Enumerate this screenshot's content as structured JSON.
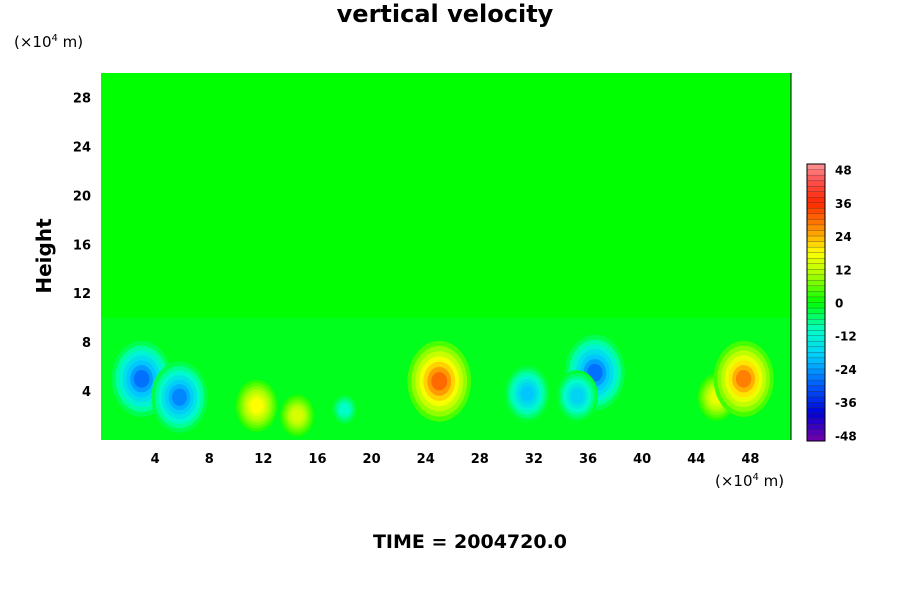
{
  "chart_data": {
    "type": "heatmap",
    "title": "vertical velocity",
    "ylabel": "Height",
    "xlabel": "",
    "unit_top": {
      "prefix": "(×10",
      "exp": "4",
      "suffix": " m)"
    },
    "unit_bottom": {
      "prefix": "(×10",
      "exp": "4",
      "suffix": " m)"
    },
    "footer": "TIME = 2004720.0",
    "xlim": [
      0,
      51
    ],
    "ylim": [
      0,
      30
    ],
    "x_ticks": [
      "4",
      "8",
      "12",
      "16",
      "20",
      "24",
      "28",
      "32",
      "36",
      "40",
      "44",
      "48"
    ],
    "x_tick_values": [
      4,
      8,
      12,
      16,
      20,
      24,
      28,
      32,
      36,
      40,
      44,
      48
    ],
    "y_ticks": [
      "4",
      "8",
      "12",
      "16",
      "20",
      "24",
      "28"
    ],
    "y_tick_values": [
      4,
      8,
      12,
      16,
      20,
      24,
      28
    ],
    "colorbar": {
      "ticks": [
        "48",
        "36",
        "24",
        "12",
        "0",
        "-12",
        "-24",
        "-36",
        "-48"
      ],
      "tick_values": [
        48,
        36,
        24,
        12,
        0,
        -12,
        -24,
        -36,
        -48
      ],
      "range": [
        -50,
        50
      ]
    },
    "background_value": 0,
    "features": [
      {
        "x": 3,
        "y": 5,
        "value": -28
      },
      {
        "x": 5.8,
        "y": 3.5,
        "value": -26
      },
      {
        "x": 11.5,
        "y": 2.8,
        "value": 18
      },
      {
        "x": 14.5,
        "y": 2,
        "value": 14
      },
      {
        "x": 18,
        "y": 2.5,
        "value": -10
      },
      {
        "x": 25,
        "y": 4.8,
        "value": 30
      },
      {
        "x": 31.5,
        "y": 3.8,
        "value": -20
      },
      {
        "x": 36.5,
        "y": 5.5,
        "value": -28
      },
      {
        "x": 35.2,
        "y": 3.6,
        "value": -18
      },
      {
        "x": 45.5,
        "y": 3.5,
        "value": 16
      },
      {
        "x": 47.5,
        "y": 5,
        "value": 28
      }
    ]
  }
}
